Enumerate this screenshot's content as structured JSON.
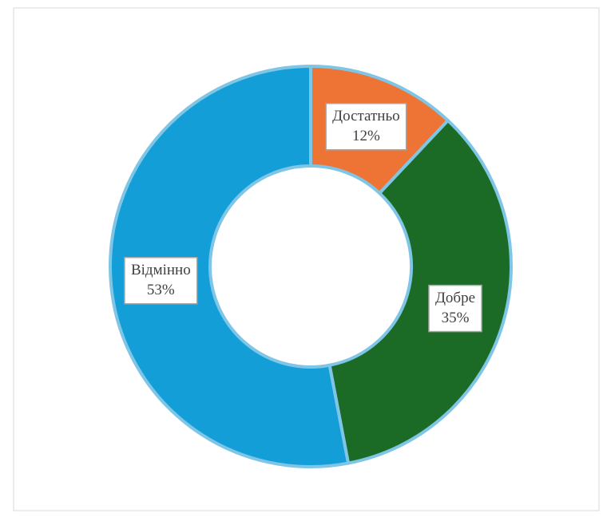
{
  "chart_data": {
    "type": "donut",
    "categories": [
      "Достатньо",
      "Добре",
      "Відмінно"
    ],
    "values": [
      12,
      35,
      53
    ],
    "value_labels": [
      "12%",
      "35%",
      "53%"
    ],
    "colors": [
      "#ed7434",
      "#1b6b27",
      "#139ed8"
    ]
  }
}
